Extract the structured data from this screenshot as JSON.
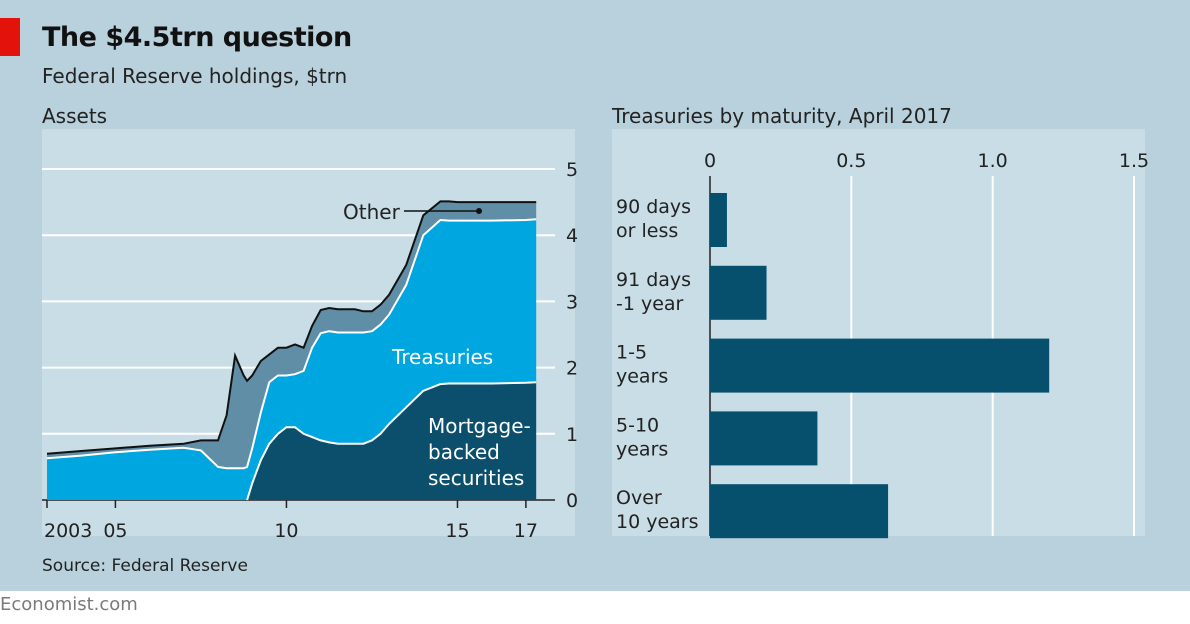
{
  "header": {
    "title": "The $4.5trn question",
    "subtitle": "Federal Reserve holdings, $trn"
  },
  "footer": {
    "source": "Source: Federal Reserve",
    "credit": "Economist.com"
  },
  "colors": {
    "background": "#b9d1dc",
    "panel": "#c8dde6",
    "other": "#5f8ea6",
    "treasuries": "#00a6e0",
    "mbs": "#0b4f6c",
    "bar": "#07506d",
    "accent": "#e3120b"
  },
  "chart_data": [
    {
      "type": "area",
      "title": "Assets",
      "ylim": [
        0,
        5
      ],
      "yticks": [
        "0",
        "1",
        "2",
        "3",
        "4",
        "5"
      ],
      "xtick_labels": [
        {
          "x": 2003,
          "label": "2003"
        },
        {
          "x": 2005,
          "label": "05"
        },
        {
          "x": 2010,
          "label": "10"
        },
        {
          "x": 2015,
          "label": "15"
        },
        {
          "x": 2017,
          "label": "17"
        }
      ],
      "xlim": [
        2003,
        2017.5
      ],
      "stacked": true,
      "x": [
        2003.0,
        2004.0,
        2005.0,
        2006.0,
        2007.0,
        2007.5,
        2008.0,
        2008.25,
        2008.5,
        2008.75,
        2008.85,
        2009.0,
        2009.25,
        2009.5,
        2009.75,
        2010.0,
        2010.25,
        2010.5,
        2010.75,
        2011.0,
        2011.25,
        2011.5,
        2012.0,
        2012.25,
        2012.5,
        2012.75,
        2013.0,
        2013.5,
        2014.0,
        2014.5,
        2014.75,
        2015.0,
        2016.0,
        2017.0,
        2017.3
      ],
      "series": [
        {
          "name": "Mortgage-backed securities",
          "values": [
            0,
            0,
            0,
            0,
            0,
            0,
            0,
            0,
            0,
            0,
            0,
            0.25,
            0.6,
            0.85,
            1.0,
            1.1,
            1.1,
            1.0,
            0.95,
            0.9,
            0.87,
            0.85,
            0.85,
            0.85,
            0.9,
            1.0,
            1.15,
            1.4,
            1.65,
            1.75,
            1.76,
            1.76,
            1.76,
            1.77,
            1.78
          ]
        },
        {
          "name": "Treasuries",
          "values": [
            0.63,
            0.67,
            0.72,
            0.76,
            0.79,
            0.75,
            0.5,
            0.48,
            0.48,
            0.48,
            0.5,
            0.53,
            0.72,
            0.93,
            0.88,
            0.78,
            0.8,
            0.95,
            1.35,
            1.62,
            1.68,
            1.68,
            1.68,
            1.68,
            1.65,
            1.65,
            1.65,
            1.85,
            2.35,
            2.48,
            2.46,
            2.46,
            2.46,
            2.46,
            2.46
          ]
        },
        {
          "name": "Other",
          "values": [
            0.07,
            0.07,
            0.06,
            0.06,
            0.06,
            0.15,
            0.4,
            0.8,
            1.7,
            1.4,
            1.3,
            1.1,
            0.78,
            0.42,
            0.42,
            0.42,
            0.45,
            0.35,
            0.33,
            0.35,
            0.35,
            0.35,
            0.35,
            0.32,
            0.3,
            0.3,
            0.3,
            0.3,
            0.3,
            0.28,
            0.29,
            0.28,
            0.28,
            0.27,
            0.26
          ]
        }
      ],
      "annotations": {
        "other": "Other",
        "treasuries": "Treasuries",
        "mbs": [
          "Mortgage-",
          "backed",
          "securities"
        ]
      }
    },
    {
      "type": "bar",
      "orientation": "horizontal",
      "title": "Treasuries by maturity, April 2017",
      "xlim": [
        0,
        1.5
      ],
      "xticks": [
        "0",
        "0.5",
        "1.0",
        "1.5"
      ],
      "categories": [
        [
          "90 days",
          "or less"
        ],
        [
          "91 days",
          "-1 year"
        ],
        [
          "1-5",
          "years"
        ],
        [
          "5-10",
          "years"
        ],
        [
          "Over",
          "10 years"
        ]
      ],
      "values": [
        0.06,
        0.2,
        1.2,
        0.38,
        0.63
      ]
    }
  ]
}
